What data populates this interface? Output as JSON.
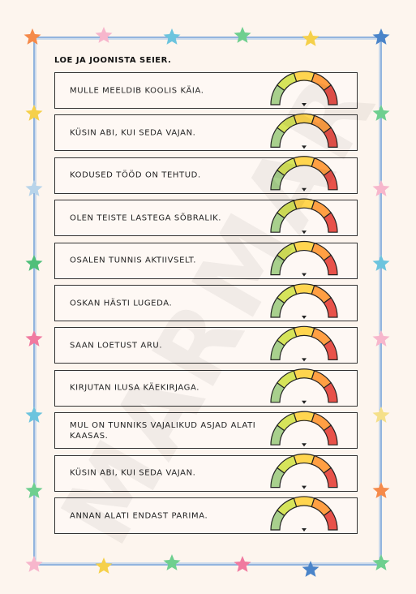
{
  "header": {
    "title": "LOE JA JOONISTA SEIER."
  },
  "watermark": "MARMAR",
  "rows": [
    "MULLE MEELDIB KOOLIS KÄIA.",
    "KÜSIN ABI, KUI SEDA VAJAN.",
    "KODUSED TÖÖD ON TEHTUD.",
    "OLEN TEISTE LASTEGA SÕBRALIK.",
    "OSALEN TUNNIS AKTIIVSELT.",
    "OSKAN HÄSTI LUGEDA.",
    "SAAN LOETUST ARU.",
    "KIRJUTAN ILUSA KÄEKIRJAGA.",
    "MUL ON TUNNIKS VAJALIKUD ASJAD ALATI KAASAS.",
    "KÜSIN ABI, KUI SEDA VAJAN.",
    "ANNAN ALATI ENDAST PARIMA."
  ]
}
